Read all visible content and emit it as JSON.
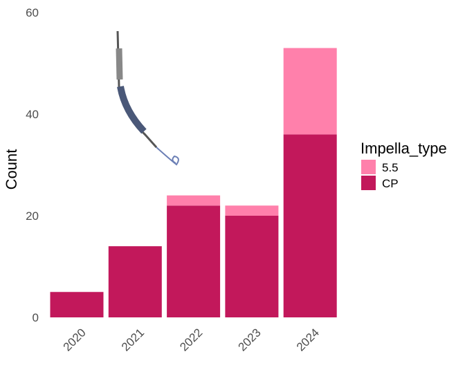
{
  "chart_data": {
    "type": "bar",
    "stacked": true,
    "title": "",
    "xlabel": "",
    "ylabel": "Count",
    "ylim": [
      0,
      60
    ],
    "yticks": [
      0,
      20,
      40,
      60
    ],
    "grid": false,
    "categories": [
      "2020",
      "2021",
      "2022",
      "2023",
      "2024"
    ],
    "series": [
      {
        "name": "CP",
        "color": "#c2185b",
        "values": [
          5,
          14,
          22,
          20,
          36
        ]
      },
      {
        "name": "5.5",
        "color": "#ff80ab",
        "values": [
          0,
          0,
          2,
          2,
          17
        ]
      }
    ],
    "legend": {
      "title": "Impella_type",
      "placement": "right",
      "entries": [
        "5.5",
        "CP"
      ]
    }
  }
}
